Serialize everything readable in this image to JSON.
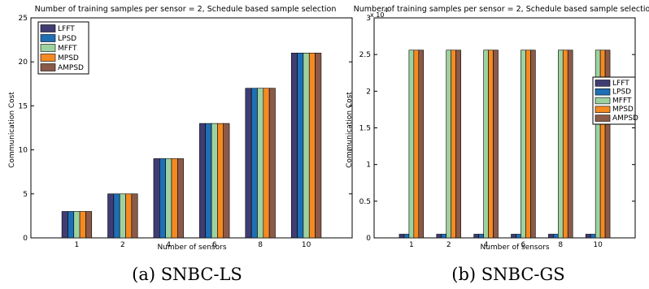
{
  "chart_data": [
    {
      "type": "bar",
      "title": "Number of training samples per sensor = 2, Schedule based sample selection",
      "xlabel": "Number of sensors",
      "ylabel": "Communication Cost",
      "categories": [
        "1",
        "2",
        "4",
        "6",
        "8",
        "10"
      ],
      "ylim": [
        0,
        25
      ],
      "yticks": [
        "0",
        "5",
        "10",
        "15",
        "20",
        "25"
      ],
      "y_exponent": "",
      "legend_position": "top-left",
      "grid": false,
      "series": [
        {
          "name": "LFFT",
          "color": "#3f3d73",
          "values": [
            3,
            5,
            9,
            13,
            17,
            21
          ]
        },
        {
          "name": "LPSD",
          "color": "#1f6fb5",
          "values": [
            3,
            5,
            9,
            13,
            17,
            21
          ]
        },
        {
          "name": "MFFT",
          "color": "#9ed1a0",
          "values": [
            3,
            5,
            9,
            13,
            17,
            21
          ]
        },
        {
          "name": "MPSD",
          "color": "#f58a23",
          "values": [
            3,
            5,
            9,
            13,
            17,
            21
          ]
        },
        {
          "name": "AMPSD",
          "color": "#8b5a48",
          "values": [
            3,
            5,
            9,
            13,
            17,
            21
          ]
        }
      ],
      "caption": "(a)  SNBC-LS"
    },
    {
      "type": "bar",
      "title": "Number of training samples per sensor = 2, Schedule based sample selection",
      "xlabel": "Number of sensors",
      "ylabel": "Communication Cost",
      "categories": [
        "1",
        "2",
        "4",
        "6",
        "8",
        "10"
      ],
      "ylim": [
        0,
        30000
      ],
      "yticks": [
        "0",
        "0.5",
        "1",
        "1.5",
        "2",
        "2.5",
        "3"
      ],
      "y_exponent": "x 10",
      "legend_position": "right",
      "grid": false,
      "series": [
        {
          "name": "LFFT",
          "color": "#3f3d73",
          "values": [
            500,
            500,
            500,
            500,
            500,
            500
          ]
        },
        {
          "name": "LPSD",
          "color": "#1f6fb5",
          "values": [
            500,
            500,
            500,
            500,
            500,
            500
          ]
        },
        {
          "name": "MFFT",
          "color": "#9ed1a0",
          "values": [
            25600,
            25600,
            25600,
            25600,
            25600,
            25600
          ]
        },
        {
          "name": "MPSD",
          "color": "#f58a23",
          "values": [
            25600,
            25600,
            25600,
            25600,
            25600,
            25600
          ]
        },
        {
          "name": "AMPSD",
          "color": "#8b5a48",
          "values": [
            25600,
            25600,
            25600,
            25600,
            25600,
            25600
          ]
        }
      ],
      "caption": "(b)  SNBC-GS"
    }
  ]
}
